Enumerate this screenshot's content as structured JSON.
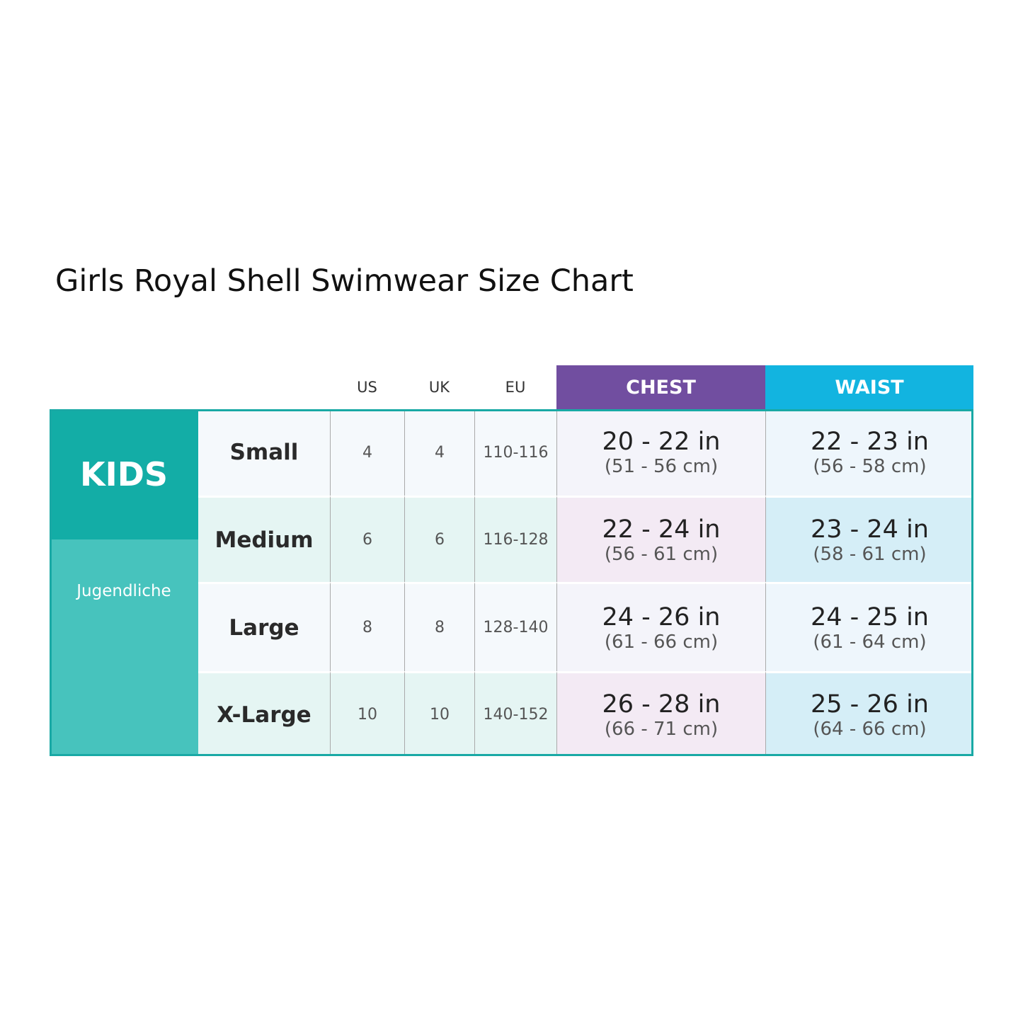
{
  "title": "Girls Royal Shell Swimwear Size Chart",
  "table": {
    "headers": [
      "US",
      "UK",
      "EU",
      "CHEST",
      "WAIST"
    ],
    "group": {
      "label": "KIDS",
      "sublabel": "Jugendliche"
    },
    "rows": [
      [
        "Small",
        "4",
        "4",
        "110-116",
        "20 - 22 in",
        "(51 - 56 cm)",
        "22 - 23 in",
        "(56 - 58 cm)"
      ],
      [
        "Medium",
        "6",
        "6",
        "116-128",
        "22 - 24 in",
        "(56 - 61 cm)",
        "23 - 24 in",
        "(58 - 61 cm)"
      ],
      [
        "Large",
        "8",
        "8",
        "128-140",
        "24 - 26 in",
        "(61 - 66 cm)",
        "24 - 25 in",
        "(61 - 64 cm)"
      ],
      [
        "X-Large",
        "10",
        "10",
        "140-152",
        "26 - 28 in",
        "(66 - 71 cm)",
        "25 - 26 in",
        "(64 - 66 cm)"
      ]
    ]
  }
}
